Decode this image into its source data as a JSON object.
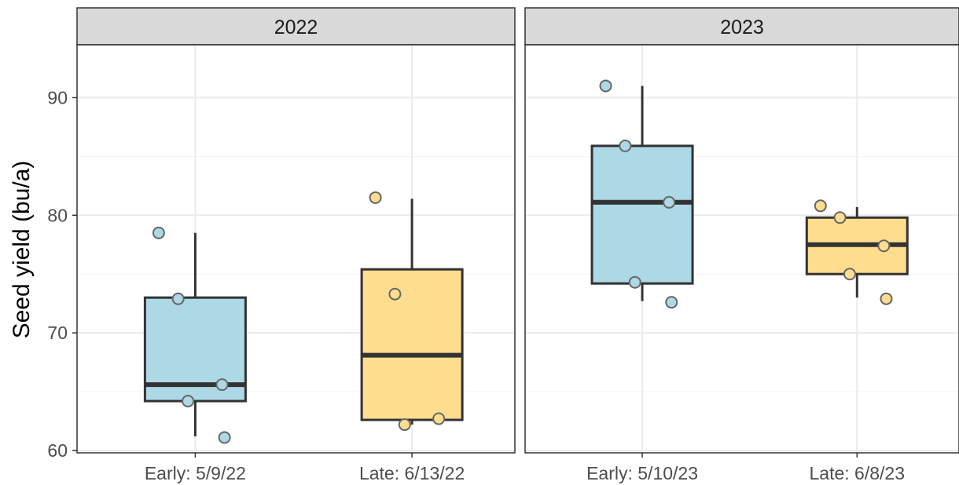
{
  "chart_data": {
    "type": "box",
    "ylabel": "Seed yield (bu/a)",
    "xlabel": "",
    "ylim": [
      59.8,
      94.5
    ],
    "yticks": [
      60,
      70,
      80,
      90
    ],
    "grid": true,
    "legend": "none",
    "colors": {
      "Early": "#add8e6",
      "Late": "#ffdd8f"
    },
    "panels": [
      {
        "title": "2022",
        "categories": [
          "Early: 5/9/22",
          "Late: 6/13/22"
        ],
        "boxes": [
          {
            "group": "Early",
            "min": 61.2,
            "q1": 64.2,
            "median": 65.6,
            "q3": 73.0,
            "max": 78.5,
            "points": [
              78.5,
              72.9,
              65.6,
              64.2,
              61.1
            ]
          },
          {
            "group": "Late",
            "min": 62.2,
            "q1": 62.6,
            "median": 68.1,
            "q3": 75.4,
            "max": 81.4,
            "points": [
              81.5,
              73.3,
              62.7,
              62.2
            ]
          }
        ]
      },
      {
        "title": "2023",
        "categories": [
          "Early: 5/10/23",
          "Late: 6/8/23"
        ],
        "boxes": [
          {
            "group": "Early",
            "min": 72.7,
            "q1": 74.2,
            "median": 81.1,
            "q3": 85.9,
            "max": 91.0,
            "points": [
              91.0,
              85.9,
              81.1,
              74.3,
              72.6
            ]
          },
          {
            "group": "Late",
            "min": 73.0,
            "q1": 75.0,
            "median": 77.5,
            "q3": 79.8,
            "max": 80.7,
            "points": [
              80.8,
              79.8,
              77.4,
              75.0,
              72.9
            ]
          }
        ]
      }
    ]
  }
}
